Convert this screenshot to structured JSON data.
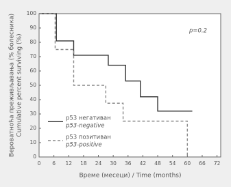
{
  "chart_data": {
    "type": "step",
    "ylabel": [
      "Вероватноћа преживљавања (% болесника)",
      "Cumulative percent surviving (%)"
    ],
    "xlabel": "Време (месеци) / Time (months)",
    "annotation": "p=0.2",
    "xlim": [
      0,
      73.5
    ],
    "xticks": [
      0,
      6,
      12,
      18,
      24,
      30,
      36,
      42,
      48,
      54,
      60,
      66,
      72
    ],
    "ylim": [
      0,
      100
    ],
    "yticks": [
      0,
      10,
      20,
      30,
      40,
      50,
      60,
      70,
      80,
      90,
      100
    ],
    "series": [
      {
        "name": "p53 негативан",
        "name_en": "p53-negative",
        "color": "#333333",
        "dash": false,
        "x": [
          0,
          7,
          14,
          28,
          35,
          41,
          48,
          62
        ],
        "values": [
          100,
          81,
          71,
          64,
          53,
          42,
          32,
          32
        ]
      },
      {
        "name": "p53 позитиван",
        "name_en": "p53-positive",
        "color": "#888888",
        "dash": true,
        "x": [
          0,
          6.5,
          14,
          27,
          34,
          60
        ],
        "values": [
          100,
          75,
          50,
          37.5,
          25,
          0
        ]
      }
    ]
  }
}
